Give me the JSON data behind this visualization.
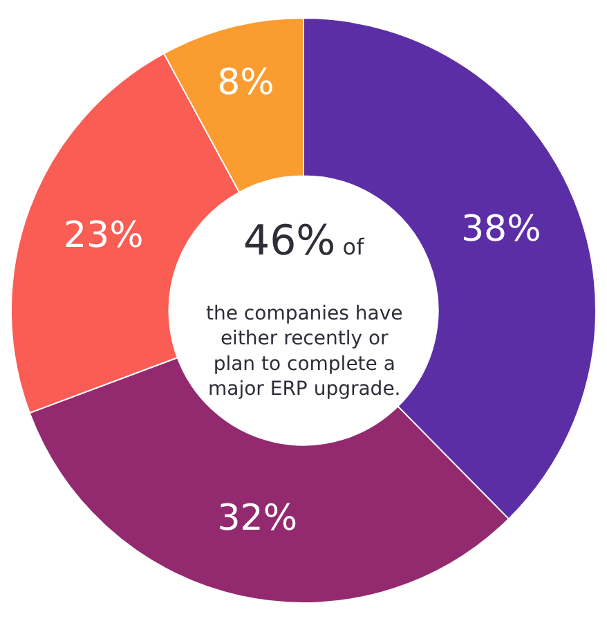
{
  "chart_data": {
    "type": "donut",
    "categories": [
      null,
      null,
      null,
      null
    ],
    "values": [
      38,
      32,
      23,
      8
    ],
    "value_labels": [
      "38%",
      "32%",
      "23%",
      "8%"
    ],
    "colors": [
      "#5b2ea6",
      "#932a6f",
      "#f95d53",
      "#fa9c30"
    ],
    "annotations": [
      "46% of",
      "the companies have\neither recently or\nplan to complete a\nmajor ERP upgrade."
    ],
    "legend": false
  }
}
